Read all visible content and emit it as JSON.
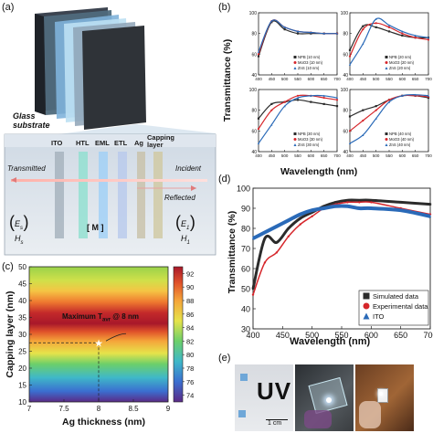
{
  "panels": {
    "a": {
      "label": "(a)",
      "glass_label": "Glass substrate",
      "layers": [
        "ITO",
        "HTL",
        "EML",
        "ETL",
        "Ag",
        "Capping layer"
      ],
      "transmitted": "Transmitted",
      "incident": "Incident",
      "reflected": "Reflected",
      "left_field": {
        "E": "E",
        "H": "H",
        "sub": "s"
      },
      "right_field": {
        "E": "E",
        "H": "H",
        "sub": "1"
      },
      "matrix": "[ M ]"
    },
    "b": {
      "label": "(b)",
      "ylabel": "Transmittance (%)",
      "xlabel": "Wavelength (nm)"
    },
    "c": {
      "label": "(c)",
      "xlabel": "Ag thickness (nm)",
      "ylabel": "Capping layer (nm)",
      "annotation": "Maximum T",
      "annotation_sub": "avr",
      "annotation_tail": "@ 8 nm"
    },
    "d": {
      "label": "(d)",
      "ylabel": "Transmittance (%)",
      "xlabel": "Wavelength (nm)"
    },
    "e": {
      "label": "(e)",
      "scale_bar": "1 cm",
      "photo_text": "UV"
    }
  },
  "colors": {
    "npb": "#2b2b2b",
    "moo3": "#d6262b",
    "zns": "#2a6ab8"
  },
  "chart_data": [
    {
      "id": "b1",
      "type": "line",
      "x": [
        400,
        450,
        500,
        550,
        600,
        650,
        700
      ],
      "series": [
        {
          "name": "NPB (10 nm)",
          "values": [
            58,
            91,
            84,
            80,
            80,
            80,
            80
          ]
        },
        {
          "name": "MoO3 (10 nm)",
          "values": [
            60,
            92,
            86,
            82,
            81,
            80,
            80
          ]
        },
        {
          "name": "ZnS (10 nm)",
          "values": [
            62,
            92,
            86,
            82,
            81,
            80,
            80
          ]
        }
      ],
      "xlim": [
        400,
        700
      ],
      "ylim": [
        40,
        100
      ],
      "xticks": [
        400,
        450,
        500,
        550,
        600,
        650,
        700
      ],
      "yticks": [
        40,
        60,
        80,
        100
      ],
      "legend": "bottom-right"
    },
    {
      "id": "b2",
      "type": "line",
      "x": [
        400,
        450,
        500,
        550,
        600,
        650,
        700
      ],
      "series": [
        {
          "name": "NPB (20 nm)",
          "values": [
            64,
            87,
            86,
            82,
            78,
            76,
            76
          ]
        },
        {
          "name": "MoO3 (20 nm)",
          "values": [
            58,
            84,
            90,
            86,
            80,
            76,
            74
          ]
        },
        {
          "name": "ZnS (20 nm)",
          "values": [
            50,
            70,
            94,
            88,
            82,
            78,
            76
          ]
        }
      ],
      "xlim": [
        400,
        700
      ],
      "ylim": [
        40,
        100
      ],
      "xticks": [
        400,
        450,
        500,
        550,
        600,
        650,
        700
      ],
      "yticks": [
        40,
        60,
        80,
        100
      ],
      "legend": "bottom-right"
    },
    {
      "id": "b3",
      "type": "line",
      "x": [
        400,
        450,
        500,
        550,
        600,
        650,
        700
      ],
      "series": [
        {
          "name": "NPB (30 nm)",
          "values": [
            72,
            86,
            88,
            90,
            88,
            86,
            84
          ]
        },
        {
          "name": "MoO3 (30 nm)",
          "values": [
            62,
            80,
            88,
            94,
            94,
            92,
            90
          ]
        },
        {
          "name": "ZnS (30 nm)",
          "values": [
            48,
            66,
            84,
            92,
            94,
            94,
            92
          ]
        }
      ],
      "xlim": [
        400,
        700
      ],
      "ylim": [
        40,
        100
      ],
      "xticks": [
        400,
        450,
        500,
        550,
        600,
        650,
        700
      ],
      "yticks": [
        40,
        60,
        80,
        100
      ],
      "legend": "bottom-right"
    },
    {
      "id": "b4",
      "type": "line",
      "x": [
        400,
        450,
        500,
        550,
        600,
        650,
        700
      ],
      "series": [
        {
          "name": "NPB (40 nm)",
          "values": [
            74,
            80,
            84,
            90,
            94,
            94,
            92
          ]
        },
        {
          "name": "MoO3 (40 nm)",
          "values": [
            60,
            70,
            80,
            90,
            94,
            94,
            93
          ]
        },
        {
          "name": "ZnS (40 nm)",
          "values": [
            48,
            56,
            72,
            88,
            94,
            95,
            94
          ]
        }
      ],
      "xlim": [
        400,
        700
      ],
      "ylim": [
        40,
        100
      ],
      "xticks": [
        400,
        450,
        500,
        550,
        600,
        650,
        700
      ],
      "yticks": [
        40,
        60,
        80,
        100
      ],
      "legend": "bottom-right"
    },
    {
      "id": "c",
      "type": "heatmap",
      "xlabel": "Ag thickness (nm)",
      "ylabel": "Capping layer (nm)",
      "xlim": [
        7,
        9
      ],
      "ylim": [
        10,
        50
      ],
      "xticks": [
        7.0,
        7.5,
        8.0,
        8.5,
        9.0
      ],
      "yticks": [
        10,
        15,
        20,
        25,
        30,
        35,
        40,
        45,
        50
      ],
      "colorbar_ticks": [
        74,
        76,
        78,
        80,
        82,
        84,
        86,
        88,
        90,
        92
      ],
      "colorbar_range": [
        73,
        93
      ],
      "maximum_point": {
        "x": 8.0,
        "y": 27.5
      }
    },
    {
      "id": "d",
      "type": "line",
      "x": [
        400,
        420,
        440,
        460,
        480,
        500,
        520,
        540,
        560,
        580,
        600,
        650,
        700
      ],
      "series": [
        {
          "name": "Simulated data",
          "values": [
            50,
            75,
            73,
            80,
            85,
            88,
            91,
            93,
            94,
            94,
            94,
            93,
            92
          ]
        },
        {
          "name": "Experimental data",
          "values": [
            47,
            63,
            68,
            76,
            82,
            86,
            90,
            92,
            93,
            93,
            93,
            90,
            87
          ]
        },
        {
          "name": "ITO",
          "values": [
            75,
            78,
            81,
            84,
            87,
            89,
            90,
            91,
            91,
            90,
            90,
            89,
            86
          ]
        }
      ],
      "xlabel": "Wavelength (nm)",
      "ylabel": "Transmittance (%)",
      "xlim": [
        400,
        700
      ],
      "ylim": [
        30,
        100
      ],
      "xticks": [
        400,
        450,
        500,
        550,
        600,
        650,
        700
      ],
      "yticks": [
        30,
        40,
        50,
        60,
        70,
        80,
        90,
        100
      ],
      "legend": "bottom-right"
    }
  ]
}
